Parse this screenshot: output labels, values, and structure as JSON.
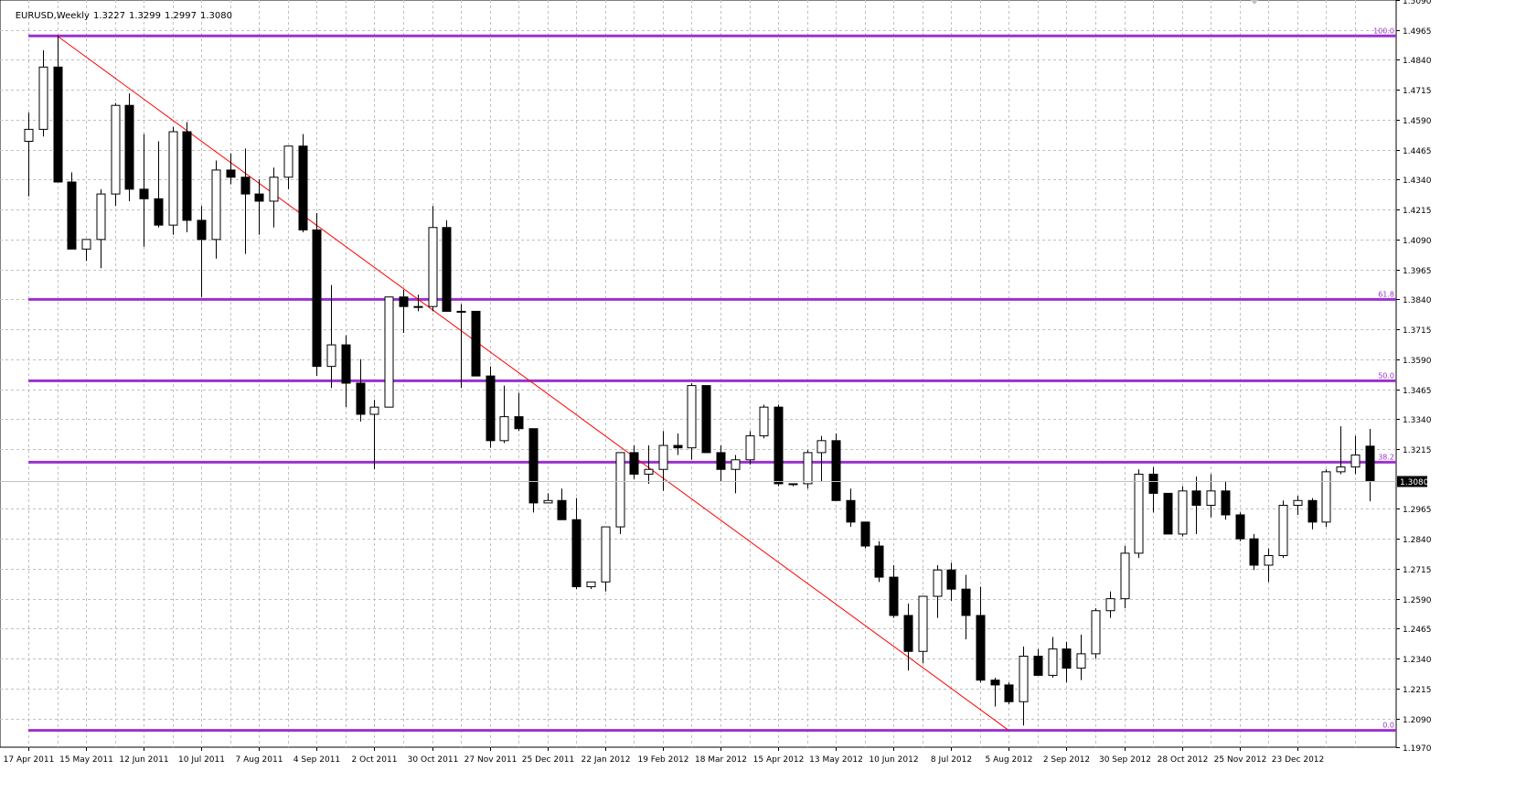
{
  "header": {
    "symbol": "EURUSD,Weekly",
    "open": "1.3227",
    "high": "1.3299",
    "low": "1.2997",
    "close": "1.3080"
  },
  "current_price_label": "1.3080",
  "colors": {
    "background": "#ffffff",
    "grid": "#c0c0c0",
    "candle": "#000000",
    "fib_line": "#9a32cd",
    "trend_line": "#ff0000",
    "fib_label": "#9a32cd"
  },
  "chart_data": {
    "type": "candlestick",
    "y_axis_ticks": [
      "1.5090",
      "1.4965",
      "1.4840",
      "1.4715",
      "1.4590",
      "1.4465",
      "1.4340",
      "1.4215",
      "1.4090",
      "1.3965",
      "1.3840",
      "1.3715",
      "1.3590",
      "1.3465",
      "1.3340",
      "1.3215",
      "1.2965",
      "1.2840",
      "1.2715",
      "1.2590",
      "1.2465",
      "1.2340",
      "1.2215",
      "1.2090",
      "1.1970"
    ],
    "ylim": [
      1.197,
      1.509
    ],
    "x_axis_labels": [
      "17 Apr 2011",
      "15 May 2011",
      "12 Jun 2011",
      "10 Jul 2011",
      "7 Aug 2011",
      "4 Sep 2011",
      "2 Oct 2011",
      "30 Oct 2011",
      "27 Nov 2011",
      "25 Dec 2011",
      "22 Jan 2012",
      "19 Feb 2012",
      "18 Mar 2012",
      "15 Apr 2012",
      "13 May 2012",
      "10 Jun 2012",
      "8 Jul 2012",
      "5 Aug 2012",
      "2 Sep 2012",
      "30 Sep 2012",
      "28 Oct 2012",
      "25 Nov 2012",
      "23 Dec 2012"
    ],
    "candles": [
      [
        1.45,
        1.462,
        1.427,
        1.455
      ],
      [
        1.455,
        1.488,
        1.452,
        1.481
      ],
      [
        1.481,
        1.494,
        1.433,
        1.433
      ],
      [
        1.433,
        1.437,
        1.405,
        1.405
      ],
      [
        1.405,
        1.409,
        1.4,
        1.409
      ],
      [
        1.409,
        1.43,
        1.397,
        1.428
      ],
      [
        1.428,
        1.466,
        1.423,
        1.465
      ],
      [
        1.465,
        1.47,
        1.425,
        1.43
      ],
      [
        1.43,
        1.453,
        1.406,
        1.426
      ],
      [
        1.426,
        1.45,
        1.414,
        1.415
      ],
      [
        1.415,
        1.456,
        1.411,
        1.454
      ],
      [
        1.454,
        1.458,
        1.412,
        1.417
      ],
      [
        1.417,
        1.423,
        1.385,
        1.409
      ],
      [
        1.409,
        1.442,
        1.401,
        1.438
      ],
      [
        1.438,
        1.445,
        1.432,
        1.435
      ],
      [
        1.435,
        1.447,
        1.403,
        1.428
      ],
      [
        1.428,
        1.434,
        1.411,
        1.425
      ],
      [
        1.425,
        1.439,
        1.414,
        1.435
      ],
      [
        1.435,
        1.448,
        1.43,
        1.448
      ],
      [
        1.448,
        1.453,
        1.412,
        1.413
      ],
      [
        1.413,
        1.42,
        1.352,
        1.356
      ],
      [
        1.356,
        1.39,
        1.347,
        1.365
      ],
      [
        1.365,
        1.369,
        1.339,
        1.349
      ],
      [
        1.349,
        1.359,
        1.333,
        1.336
      ],
      [
        1.336,
        1.342,
        1.313,
        1.339
      ],
      [
        1.339,
        1.385,
        1.339,
        1.385
      ],
      [
        1.385,
        1.388,
        1.37,
        1.381
      ],
      [
        1.381,
        1.386,
        1.379,
        1.381
      ],
      [
        1.381,
        1.423,
        1.379,
        1.414
      ],
      [
        1.414,
        1.417,
        1.379,
        1.379
      ],
      [
        1.379,
        1.382,
        1.347,
        1.379
      ],
      [
        1.379,
        1.379,
        1.352,
        1.352
      ],
      [
        1.352,
        1.356,
        1.322,
        1.325
      ],
      [
        1.325,
        1.348,
        1.324,
        1.335
      ],
      [
        1.335,
        1.345,
        1.329,
        1.33
      ],
      [
        1.33,
        1.33,
        1.295,
        1.299
      ],
      [
        1.299,
        1.303,
        1.299,
        1.3
      ],
      [
        1.3,
        1.305,
        1.292,
        1.292
      ],
      [
        1.292,
        1.301,
        1.263,
        1.264
      ],
      [
        1.264,
        1.266,
        1.263,
        1.266
      ],
      [
        1.266,
        1.289,
        1.262,
        1.289
      ],
      [
        1.289,
        1.32,
        1.286,
        1.32
      ],
      [
        1.32,
        1.323,
        1.309,
        1.311
      ],
      [
        1.311,
        1.323,
        1.307,
        1.313
      ],
      [
        1.313,
        1.329,
        1.304,
        1.323
      ],
      [
        1.323,
        1.328,
        1.319,
        1.322
      ],
      [
        1.322,
        1.349,
        1.317,
        1.348
      ],
      [
        1.348,
        1.348,
        1.32,
        1.32
      ],
      [
        1.32,
        1.323,
        1.308,
        1.313
      ],
      [
        1.313,
        1.319,
        1.303,
        1.317
      ],
      [
        1.317,
        1.329,
        1.315,
        1.327
      ],
      [
        1.327,
        1.34,
        1.326,
        1.339
      ],
      [
        1.339,
        1.34,
        1.306,
        1.307
      ],
      [
        1.307,
        1.307,
        1.306,
        1.307
      ],
      [
        1.307,
        1.321,
        1.305,
        1.32
      ],
      [
        1.32,
        1.327,
        1.308,
        1.325
      ],
      [
        1.325,
        1.328,
        1.3,
        1.3
      ],
      [
        1.3,
        1.305,
        1.289,
        1.291
      ],
      [
        1.291,
        1.291,
        1.28,
        1.281
      ],
      [
        1.281,
        1.283,
        1.266,
        1.268
      ],
      [
        1.268,
        1.273,
        1.251,
        1.252
      ],
      [
        1.252,
        1.257,
        1.229,
        1.237
      ],
      [
        1.237,
        1.26,
        1.232,
        1.26
      ],
      [
        1.26,
        1.273,
        1.251,
        1.271
      ],
      [
        1.271,
        1.274,
        1.258,
        1.263
      ],
      [
        1.263,
        1.269,
        1.242,
        1.252
      ],
      [
        1.252,
        1.264,
        1.224,
        1.225
      ],
      [
        1.225,
        1.226,
        1.214,
        1.223
      ],
      [
        1.223,
        1.224,
        1.215,
        1.216
      ],
      [
        1.216,
        1.239,
        1.206,
        1.235
      ],
      [
        1.235,
        1.238,
        1.227,
        1.227
      ],
      [
        1.227,
        1.243,
        1.226,
        1.238
      ],
      [
        1.238,
        1.241,
        1.224,
        1.23
      ],
      [
        1.23,
        1.244,
        1.225,
        1.236
      ],
      [
        1.236,
        1.255,
        1.234,
        1.254
      ],
      [
        1.254,
        1.262,
        1.251,
        1.259
      ],
      [
        1.259,
        1.281,
        1.255,
        1.278
      ],
      [
        1.278,
        1.313,
        1.276,
        1.311
      ],
      [
        1.311,
        1.314,
        1.295,
        1.303
      ],
      [
        1.303,
        1.303,
        1.286,
        1.286
      ],
      [
        1.286,
        1.306,
        1.285,
        1.304
      ],
      [
        1.304,
        1.31,
        1.286,
        1.298
      ],
      [
        1.298,
        1.311,
        1.293,
        1.304
      ],
      [
        1.304,
        1.308,
        1.292,
        1.294
      ],
      [
        1.294,
        1.295,
        1.283,
        1.284
      ],
      [
        1.284,
        1.286,
        1.271,
        1.273
      ],
      [
        1.273,
        1.28,
        1.266,
        1.277
      ],
      [
        1.277,
        1.3,
        1.276,
        1.298
      ],
      [
        1.298,
        1.302,
        1.294,
        1.3
      ],
      [
        1.3,
        1.301,
        1.288,
        1.291
      ],
      [
        1.291,
        1.313,
        1.289,
        1.312
      ],
      [
        1.312,
        1.331,
        1.311,
        1.314
      ],
      [
        1.314,
        1.327,
        1.311,
        1.319
      ],
      [
        1.3227,
        1.3299,
        1.2997,
        1.308
      ]
    ],
    "fib_levels": [
      {
        "label": "100.0",
        "price": 1.494
      },
      {
        "label": "61.8",
        "price": 1.384
      },
      {
        "label": "50.0",
        "price": 1.35
      },
      {
        "label": "38.2",
        "price": 1.316
      },
      {
        "label": "0.0",
        "price": 1.204
      }
    ],
    "trend_line": {
      "from_index": 2,
      "from_price": 1.494,
      "to_index": 68,
      "to_price": 1.204
    },
    "grid": true
  }
}
